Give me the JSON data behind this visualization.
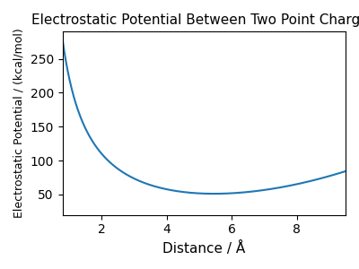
{
  "title": "Electrostatic Potential Between Two Point Charges",
  "xlabel": "Distance / Å",
  "ylabel": "Electrostatic Potential / (kcal/mol)",
  "line_color": "#1f77b4",
  "line_width": 1.5,
  "x_min": 0.8,
  "x_max": 9.5,
  "y_min": 20,
  "y_max": 290,
  "coulomb_k": 332.0,
  "q1q2": 0.5,
  "C": 5.0,
  "figsize": [
    4.0,
    3.0
  ],
  "dpi": 100,
  "title_fontsize": 11,
  "xlabel_fontsize": 11,
  "ylabel_fontsize": 9
}
